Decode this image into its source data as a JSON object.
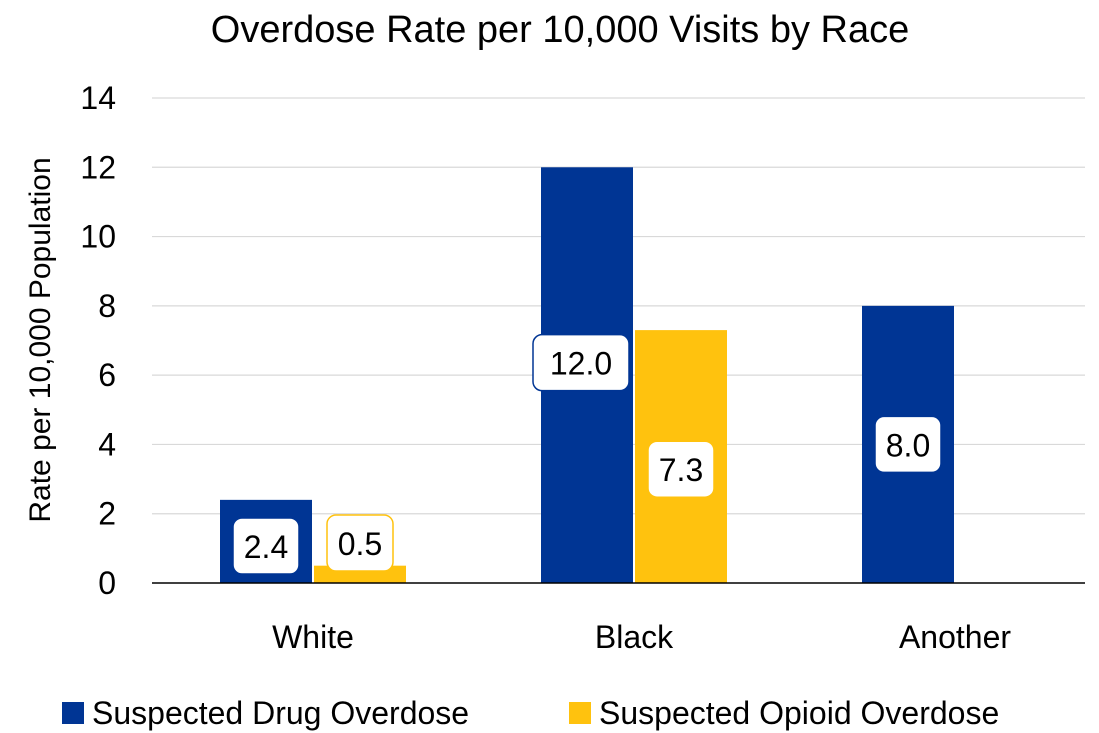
{
  "chart_data": {
    "type": "bar",
    "title": "Overdose Rate per 10,000 Visits by Race",
    "xlabel": "",
    "ylabel": "Rate  per 10,000 Population",
    "categories": [
      "White",
      "Black",
      "Another"
    ],
    "series": [
      {
        "name": "Suspected Drug Overdose",
        "values": [
          2.4,
          12.0,
          8.0
        ],
        "labels": [
          "2.4",
          "12.0",
          "8.0"
        ],
        "color": "#003594"
      },
      {
        "name": "Suspected Opioid Overdose",
        "values": [
          0.5,
          7.3,
          null
        ],
        "labels": [
          "0.5",
          "7.3",
          ""
        ],
        "color": "#FFC20E"
      }
    ],
    "yticks": [
      "0",
      "2",
      "4",
      "6",
      "8",
      "10",
      "12",
      "14"
    ],
    "ylim": [
      0,
      14
    ],
    "grid": true,
    "legend": "bottom"
  }
}
